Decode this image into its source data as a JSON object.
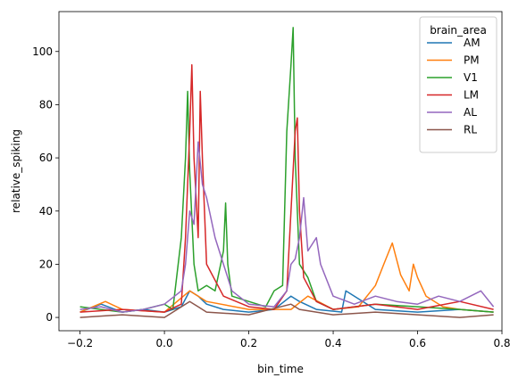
{
  "chart_data": {
    "type": "line",
    "xlabel": "bin_time",
    "ylabel": "relative_spiking",
    "xlim": [
      -0.25,
      0.8
    ],
    "ylim": [
      -5,
      115
    ],
    "xticks": [
      -0.2,
      0.0,
      0.2,
      0.4,
      0.6,
      0.8
    ],
    "xtick_labels": [
      "−0.2",
      "0.0",
      "0.2",
      "0.4",
      "0.6",
      "0.8"
    ],
    "yticks": [
      0,
      20,
      40,
      60,
      80,
      100
    ],
    "ytick_labels": [
      "0",
      "20",
      "40",
      "60",
      "80",
      "100"
    ],
    "grid": false,
    "legend": {
      "title": "brain_area",
      "placement": "top-right",
      "entries": [
        {
          "name": "AM",
          "color": "#1f77b4"
        },
        {
          "name": "PM",
          "color": "#ff7f0e"
        },
        {
          "name": "V1",
          "color": "#2ca02c"
        },
        {
          "name": "LM",
          "color": "#d62728"
        },
        {
          "name": "AL",
          "color": "#9467bd"
        },
        {
          "name": "RL",
          "color": "#8c564b"
        }
      ]
    },
    "series": [
      {
        "name": "AM",
        "color": "#1f77b4",
        "x": [
          -0.2,
          -0.15,
          -0.1,
          -0.05,
          0.0,
          0.04,
          0.06,
          0.08,
          0.1,
          0.14,
          0.2,
          0.26,
          0.3,
          0.32,
          0.36,
          0.42,
          0.43,
          0.5,
          0.6,
          0.7,
          0.78
        ],
        "y": [
          2,
          5,
          2,
          3,
          2,
          4,
          10,
          8,
          5,
          3,
          2,
          3,
          8,
          6,
          3,
          2,
          10,
          3,
          2,
          3,
          2
        ]
      },
      {
        "name": "PM",
        "color": "#ff7f0e",
        "x": [
          -0.2,
          -0.14,
          -0.1,
          0.0,
          0.06,
          0.1,
          0.2,
          0.3,
          0.34,
          0.4,
          0.46,
          0.5,
          0.52,
          0.54,
          0.56,
          0.58,
          0.59,
          0.6,
          0.62,
          0.66,
          0.7,
          0.78
        ],
        "y": [
          2,
          6,
          3,
          2,
          10,
          6,
          3,
          3,
          8,
          3,
          4,
          12,
          20,
          28,
          16,
          10,
          20,
          15,
          8,
          4,
          3,
          2
        ]
      },
      {
        "name": "V1",
        "color": "#2ca02c",
        "x": [
          -0.2,
          -0.15,
          -0.1,
          -0.05,
          0.0,
          0.02,
          0.04,
          0.05,
          0.055,
          0.06,
          0.07,
          0.08,
          0.1,
          0.12,
          0.14,
          0.145,
          0.15,
          0.16,
          0.2,
          0.24,
          0.26,
          0.28,
          0.29,
          0.3,
          0.305,
          0.31,
          0.32,
          0.34,
          0.36,
          0.4,
          0.5,
          0.6,
          0.7,
          0.78
        ],
        "y": [
          4,
          3,
          2,
          3,
          5,
          3,
          30,
          60,
          85,
          55,
          20,
          10,
          12,
          10,
          25,
          43,
          20,
          8,
          6,
          4,
          10,
          12,
          70,
          95,
          109,
          60,
          20,
          15,
          6,
          3,
          5,
          4,
          3,
          2
        ]
      },
      {
        "name": "LM",
        "color": "#d62728",
        "x": [
          -0.2,
          -0.1,
          0.0,
          0.04,
          0.05,
          0.06,
          0.065,
          0.07,
          0.08,
          0.085,
          0.09,
          0.1,
          0.14,
          0.2,
          0.26,
          0.29,
          0.3,
          0.31,
          0.315,
          0.32,
          0.33,
          0.36,
          0.4,
          0.5,
          0.6,
          0.7,
          0.78
        ],
        "y": [
          2,
          3,
          2,
          5,
          30,
          70,
          95,
          60,
          30,
          85,
          60,
          20,
          8,
          4,
          3,
          10,
          40,
          70,
          75,
          40,
          15,
          6,
          3,
          5,
          3,
          6,
          3
        ]
      },
      {
        "name": "AL",
        "color": "#9467bd",
        "x": [
          -0.2,
          -0.15,
          -0.1,
          -0.05,
          0.0,
          0.04,
          0.05,
          0.06,
          0.07,
          0.08,
          0.09,
          0.1,
          0.12,
          0.14,
          0.16,
          0.2,
          0.26,
          0.29,
          0.3,
          0.31,
          0.32,
          0.33,
          0.34,
          0.36,
          0.37,
          0.4,
          0.45,
          0.5,
          0.55,
          0.6,
          0.65,
          0.7,
          0.75,
          0.78
        ],
        "y": [
          3,
          4,
          2,
          3,
          5,
          10,
          20,
          40,
          35,
          66,
          50,
          45,
          30,
          20,
          10,
          5,
          4,
          10,
          20,
          22,
          30,
          45,
          25,
          30,
          20,
          8,
          5,
          8,
          6,
          5,
          8,
          6,
          10,
          4
        ]
      },
      {
        "name": "RL",
        "color": "#8c564b",
        "x": [
          -0.2,
          -0.1,
          0.0,
          0.06,
          0.08,
          0.1,
          0.2,
          0.3,
          0.32,
          0.4,
          0.5,
          0.6,
          0.7,
          0.78
        ],
        "y": [
          0,
          1,
          0,
          6,
          4,
          2,
          1,
          5,
          3,
          1,
          2,
          1,
          0,
          1
        ]
      }
    ]
  }
}
